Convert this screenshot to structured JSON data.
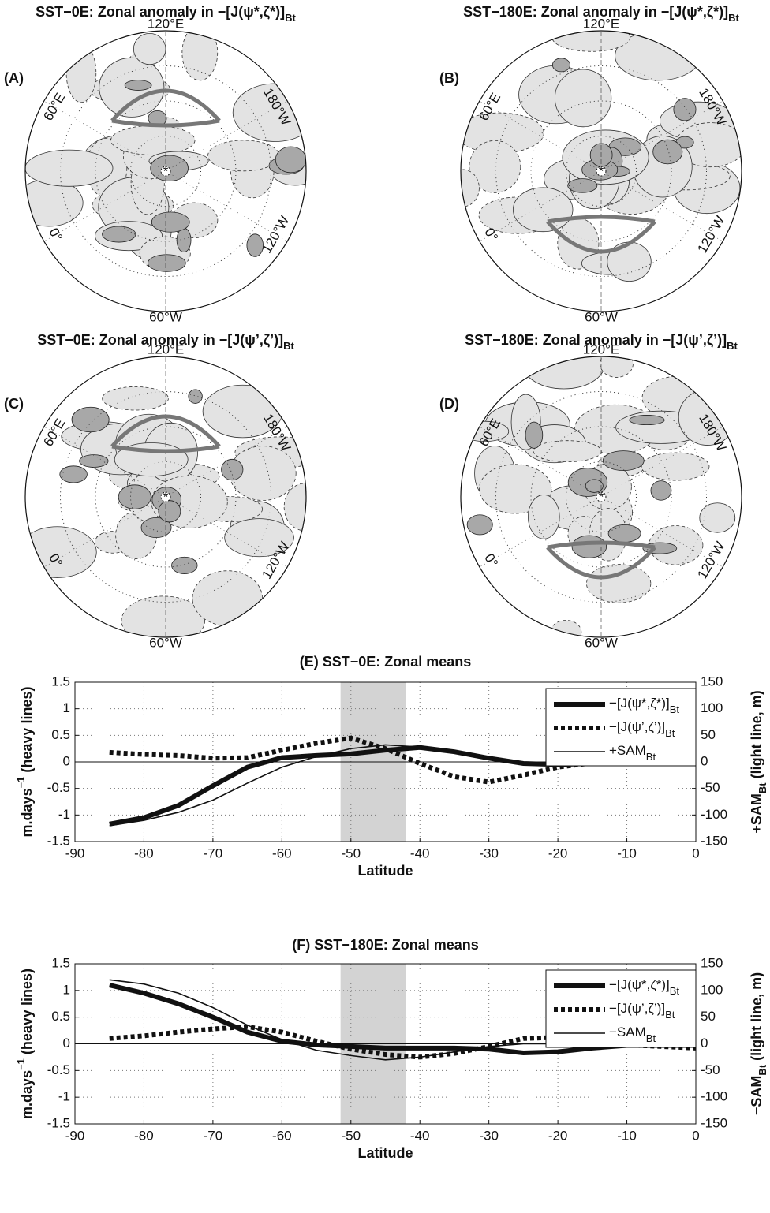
{
  "chart_data": [
    {
      "type": "polar-map",
      "panel": "(A)",
      "title": "SST−0E: Zonal anomaly in −[J(ψ*,ζ*)]",
      "title_sub": "Bt",
      "lon_labels": [
        "120°E",
        "180°W",
        "120°W",
        "60°W",
        "0°",
        "60°E"
      ]
    },
    {
      "type": "polar-map",
      "panel": "(B)",
      "title": "SST−180E: Zonal anomaly in −[J(ψ*,ζ*)]",
      "title_sub": "Bt",
      "lon_labels": [
        "120°E",
        "180°W",
        "120°W",
        "60°W",
        "0°",
        "60°E"
      ]
    },
    {
      "type": "polar-map",
      "panel": "(C)",
      "title": "SST−0E: Zonal anomaly in −[J(ψ’,ζ’)]",
      "title_sub": "Bt",
      "lon_labels": [
        "120°E",
        "180°W",
        "120°W",
        "60°W",
        "0°",
        "60°E"
      ]
    },
    {
      "type": "polar-map",
      "panel": "(D)",
      "title": "SST−180E: Zonal anomaly in −[J(ψ’,ζ’)]",
      "title_sub": "Bt",
      "lon_labels": [
        "120°E",
        "180°W",
        "120°W",
        "60°W",
        "0°",
        "60°E"
      ]
    },
    {
      "type": "line",
      "title": "(E) SST−0E: Zonal means",
      "xlabel": "Latitude",
      "ylabel": "m.days",
      "ylabel_sup": "−1",
      "ylabel_rest": " (heavy lines)",
      "y2label": "+SAM",
      "y2label_sub": "Bt",
      "y2label_rest": " (light line, m)",
      "xlim": [
        -90,
        0
      ],
      "xticks": [
        -90,
        -80,
        -70,
        -60,
        -50,
        -40,
        -30,
        -20,
        -10,
        0
      ],
      "ylim": [
        -1.5,
        1.5
      ],
      "yticks": [
        -1.5,
        -1,
        -0.5,
        0,
        0.5,
        1,
        1.5
      ],
      "y2lim": [
        -150,
        150
      ],
      "y2ticks": [
        -150,
        -100,
        -50,
        0,
        50,
        100,
        150
      ],
      "grid": true,
      "shade": [
        -51.5,
        -42
      ],
      "shade_color": "#d3d3d3",
      "x": [
        -85,
        -80,
        -75,
        -70,
        -65,
        -60,
        -55,
        -50,
        -45,
        -40,
        -35,
        -30,
        -25,
        -20,
        -15,
        -10,
        -5,
        0
      ],
      "series": [
        {
          "name": "−[J(ψ*,ζ*)]",
          "name_sub": "Bt",
          "style": "heavy",
          "color": "#111111",
          "values": [
            -1.17,
            -1.05,
            -0.82,
            -0.45,
            -0.1,
            0.08,
            0.12,
            0.15,
            0.22,
            0.27,
            0.19,
            0.07,
            -0.03,
            -0.05,
            -0.03,
            0.0,
            0.02,
            0.02
          ]
        },
        {
          "name": "−[J(ψ’,ζ’)]",
          "name_sub": "Bt",
          "style": "heavy-dotted",
          "color": "#111111",
          "values": [
            0.18,
            0.14,
            0.12,
            0.07,
            0.08,
            0.22,
            0.35,
            0.45,
            0.25,
            -0.03,
            -0.28,
            -0.38,
            -0.25,
            -0.1,
            -0.02,
            0.02,
            0.05,
            0.08
          ]
        },
        {
          "name": "+SAM",
          "name_sub": "Bt",
          "style": "light",
          "color": "#111111",
          "axis": "y2",
          "values": [
            -120,
            -110,
            -95,
            -72,
            -40,
            -10,
            10,
            25,
            32,
            28,
            18,
            7,
            -3,
            -5,
            -3,
            0,
            2,
            2
          ]
        }
      ]
    },
    {
      "type": "line",
      "title": "(F) SST−180E: Zonal means",
      "xlabel": "Latitude",
      "ylabel": "m.days",
      "ylabel_sup": "−1",
      "ylabel_rest": " (heavy lines)",
      "y2label": "−SAM",
      "y2label_sub": "Bt",
      "y2label_rest": " (light line, m)",
      "xlim": [
        -90,
        0
      ],
      "xticks": [
        -90,
        -80,
        -70,
        -60,
        -50,
        -40,
        -30,
        -20,
        -10,
        0
      ],
      "ylim": [
        -1.5,
        1.5
      ],
      "yticks": [
        -1.5,
        -1,
        -0.5,
        0,
        0.5,
        1,
        1.5
      ],
      "y2lim": [
        -150,
        150
      ],
      "y2ticks": [
        -150,
        -100,
        -50,
        0,
        50,
        100,
        150
      ],
      "grid": true,
      "shade": [
        -51.5,
        -42
      ],
      "shade_color": "#d3d3d3",
      "x": [
        -85,
        -80,
        -75,
        -70,
        -65,
        -60,
        -55,
        -50,
        -45,
        -40,
        -35,
        -30,
        -25,
        -20,
        -15,
        -10,
        -5,
        0
      ],
      "series": [
        {
          "name": "−[J(ψ*,ζ*)]",
          "name_sub": "Bt",
          "style": "heavy",
          "color": "#111111",
          "values": [
            1.1,
            0.95,
            0.75,
            0.5,
            0.22,
            0.05,
            -0.02,
            -0.05,
            -0.08,
            -0.08,
            -0.08,
            -0.1,
            -0.17,
            -0.15,
            -0.08,
            -0.03,
            0.0,
            0.02
          ]
        },
        {
          "name": "−[J(ψ’,ζ’)]",
          "name_sub": "Bt",
          "style": "heavy-dotted",
          "color": "#111111",
          "values": [
            0.1,
            0.15,
            0.22,
            0.28,
            0.32,
            0.22,
            0.05,
            -0.1,
            -0.2,
            -0.25,
            -0.18,
            -0.05,
            0.1,
            0.12,
            0.05,
            -0.02,
            -0.05,
            -0.08
          ]
        },
        {
          "name": "−SAM",
          "name_sub": "Bt",
          "style": "light",
          "color": "#111111",
          "axis": "y2",
          "values": [
            120,
            112,
            95,
            68,
            35,
            8,
            -12,
            -22,
            -30,
            -25,
            -15,
            -5,
            0,
            0,
            -2,
            -2,
            0,
            0
          ]
        }
      ]
    }
  ]
}
